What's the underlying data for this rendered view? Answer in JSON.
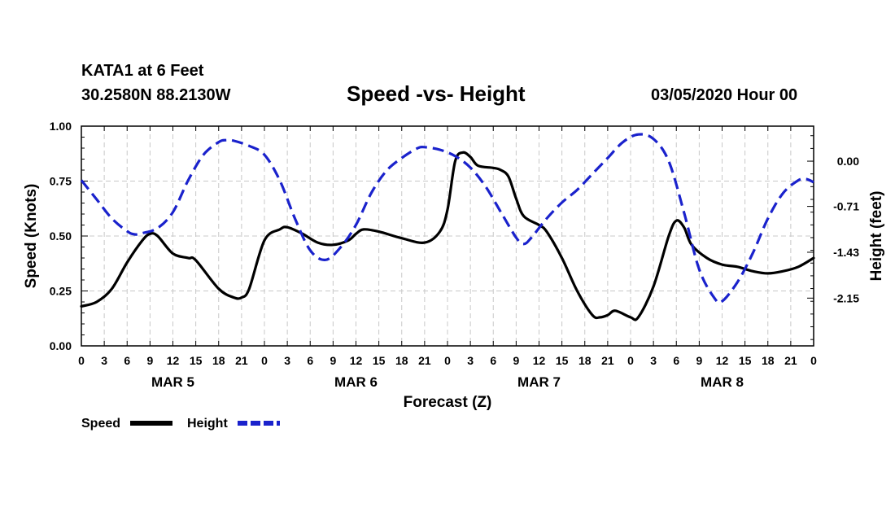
{
  "header": {
    "station": "KATA1 at 6 Feet",
    "coords": "30.2580N 88.2130W",
    "title": "Speed -vs- Height",
    "date": "03/05/2020 Hour 00"
  },
  "chart_data": {
    "type": "line",
    "title": "Speed -vs- Height",
    "xlabel": "Forecast (Z)",
    "ylabel_left": "Speed (Knots)",
    "ylabel_right": "Height (feet)",
    "x_hours_range": [
      0,
      96
    ],
    "x_tick_labels": [
      "0",
      "3",
      "6",
      "9",
      "12",
      "15",
      "18",
      "21",
      "0",
      "3",
      "6",
      "9",
      "12",
      "15",
      "18",
      "21",
      "0",
      "3",
      "6",
      "9",
      "12",
      "15",
      "18",
      "21",
      "0",
      "3",
      "6",
      "9",
      "12",
      "15",
      "18",
      "21",
      "0"
    ],
    "day_labels": [
      {
        "hour": 12,
        "label": "MAR 5"
      },
      {
        "hour": 36,
        "label": "MAR 6"
      },
      {
        "hour": 60,
        "label": "MAR 7"
      },
      {
        "hour": 84,
        "label": "MAR 8"
      }
    ],
    "ylim_left": [
      0,
      1
    ],
    "yticks_left": [
      {
        "value": 0,
        "label": "0.00"
      },
      {
        "value": 0.25,
        "label": "0.25"
      },
      {
        "value": 0.5,
        "label": "0.50"
      },
      {
        "value": 0.75,
        "label": "0.75"
      },
      {
        "value": 1,
        "label": "1.00"
      }
    ],
    "ylim_right": [
      -2.9,
      0.55
    ],
    "yticks_right": [
      {
        "value": 0,
        "label": "0.00"
      },
      {
        "value": -0.71,
        "label": "-0.71"
      },
      {
        "value": -1.43,
        "label": "-1.43"
      },
      {
        "value": -2.15,
        "label": "-2.15"
      }
    ],
    "grid": true,
    "legend": {
      "position": "bottom-left",
      "speed_label": "Speed",
      "height_label": "Height"
    },
    "series": [
      {
        "name": "Speed",
        "axis": "left",
        "color": "#000000",
        "style": "solid",
        "points": [
          [
            0,
            0.18
          ],
          [
            2,
            0.2
          ],
          [
            4,
            0.26
          ],
          [
            6,
            0.38
          ],
          [
            8,
            0.48
          ],
          [
            9,
            0.51
          ],
          [
            10,
            0.5
          ],
          [
            12,
            0.42
          ],
          [
            14,
            0.4
          ],
          [
            15,
            0.39
          ],
          [
            18,
            0.26
          ],
          [
            20,
            0.22
          ],
          [
            21,
            0.22
          ],
          [
            22,
            0.26
          ],
          [
            24,
            0.48
          ],
          [
            26,
            0.53
          ],
          [
            27,
            0.54
          ],
          [
            29,
            0.51
          ],
          [
            31,
            0.47
          ],
          [
            33,
            0.46
          ],
          [
            35,
            0.48
          ],
          [
            36,
            0.51
          ],
          [
            37,
            0.53
          ],
          [
            39,
            0.52
          ],
          [
            42,
            0.49
          ],
          [
            45,
            0.47
          ],
          [
            47,
            0.52
          ],
          [
            48,
            0.62
          ],
          [
            49,
            0.84
          ],
          [
            50,
            0.88
          ],
          [
            51,
            0.86
          ],
          [
            52,
            0.82
          ],
          [
            54,
            0.81
          ],
          [
            55,
            0.8
          ],
          [
            56,
            0.77
          ],
          [
            57,
            0.67
          ],
          [
            58,
            0.59
          ],
          [
            60,
            0.55
          ],
          [
            61,
            0.52
          ],
          [
            63,
            0.4
          ],
          [
            65,
            0.25
          ],
          [
            67,
            0.14
          ],
          [
            68,
            0.13
          ],
          [
            69,
            0.14
          ],
          [
            70,
            0.16
          ],
          [
            72,
            0.13
          ],
          [
            73,
            0.13
          ],
          [
            75,
            0.27
          ],
          [
            77,
            0.5
          ],
          [
            78,
            0.57
          ],
          [
            79,
            0.54
          ],
          [
            80,
            0.46
          ],
          [
            82,
            0.4
          ],
          [
            84,
            0.37
          ],
          [
            86,
            0.36
          ],
          [
            88,
            0.34
          ],
          [
            90,
            0.33
          ],
          [
            92,
            0.34
          ],
          [
            94,
            0.36
          ],
          [
            96,
            0.4
          ]
        ]
      },
      {
        "name": "Height",
        "axis": "right",
        "color": "#1a22cc",
        "style": "dashed",
        "points": [
          [
            0,
            -0.3
          ],
          [
            2,
            -0.6
          ],
          [
            4,
            -0.9
          ],
          [
            6,
            -1.1
          ],
          [
            7,
            -1.15
          ],
          [
            8,
            -1.13
          ],
          [
            10,
            -1.05
          ],
          [
            12,
            -0.8
          ],
          [
            14,
            -0.3
          ],
          [
            16,
            0.1
          ],
          [
            18,
            0.3
          ],
          [
            19,
            0.33
          ],
          [
            20,
            0.32
          ],
          [
            22,
            0.24
          ],
          [
            24,
            0.1
          ],
          [
            26,
            -0.3
          ],
          [
            28,
            -0.9
          ],
          [
            30,
            -1.4
          ],
          [
            32,
            -1.55
          ],
          [
            34,
            -1.35
          ],
          [
            36,
            -1.0
          ],
          [
            38,
            -0.5
          ],
          [
            40,
            -0.15
          ],
          [
            42,
            0.05
          ],
          [
            44,
            0.2
          ],
          [
            45,
            0.22
          ],
          [
            47,
            0.18
          ],
          [
            49,
            0.08
          ],
          [
            51,
            -0.1
          ],
          [
            53,
            -0.4
          ],
          [
            55,
            -0.8
          ],
          [
            57,
            -1.2
          ],
          [
            58,
            -1.3
          ],
          [
            59,
            -1.2
          ],
          [
            61,
            -0.9
          ],
          [
            63,
            -0.65
          ],
          [
            65,
            -0.45
          ],
          [
            67,
            -0.2
          ],
          [
            69,
            0.05
          ],
          [
            71,
            0.3
          ],
          [
            73,
            0.42
          ],
          [
            75,
            0.35
          ],
          [
            77,
            0.0
          ],
          [
            79,
            -0.8
          ],
          [
            81,
            -1.7
          ],
          [
            83,
            -2.15
          ],
          [
            84,
            -2.2
          ],
          [
            86,
            -1.9
          ],
          [
            88,
            -1.45
          ],
          [
            90,
            -0.9
          ],
          [
            92,
            -0.5
          ],
          [
            94,
            -0.3
          ],
          [
            95,
            -0.28
          ],
          [
            96,
            -0.33
          ]
        ]
      }
    ]
  }
}
